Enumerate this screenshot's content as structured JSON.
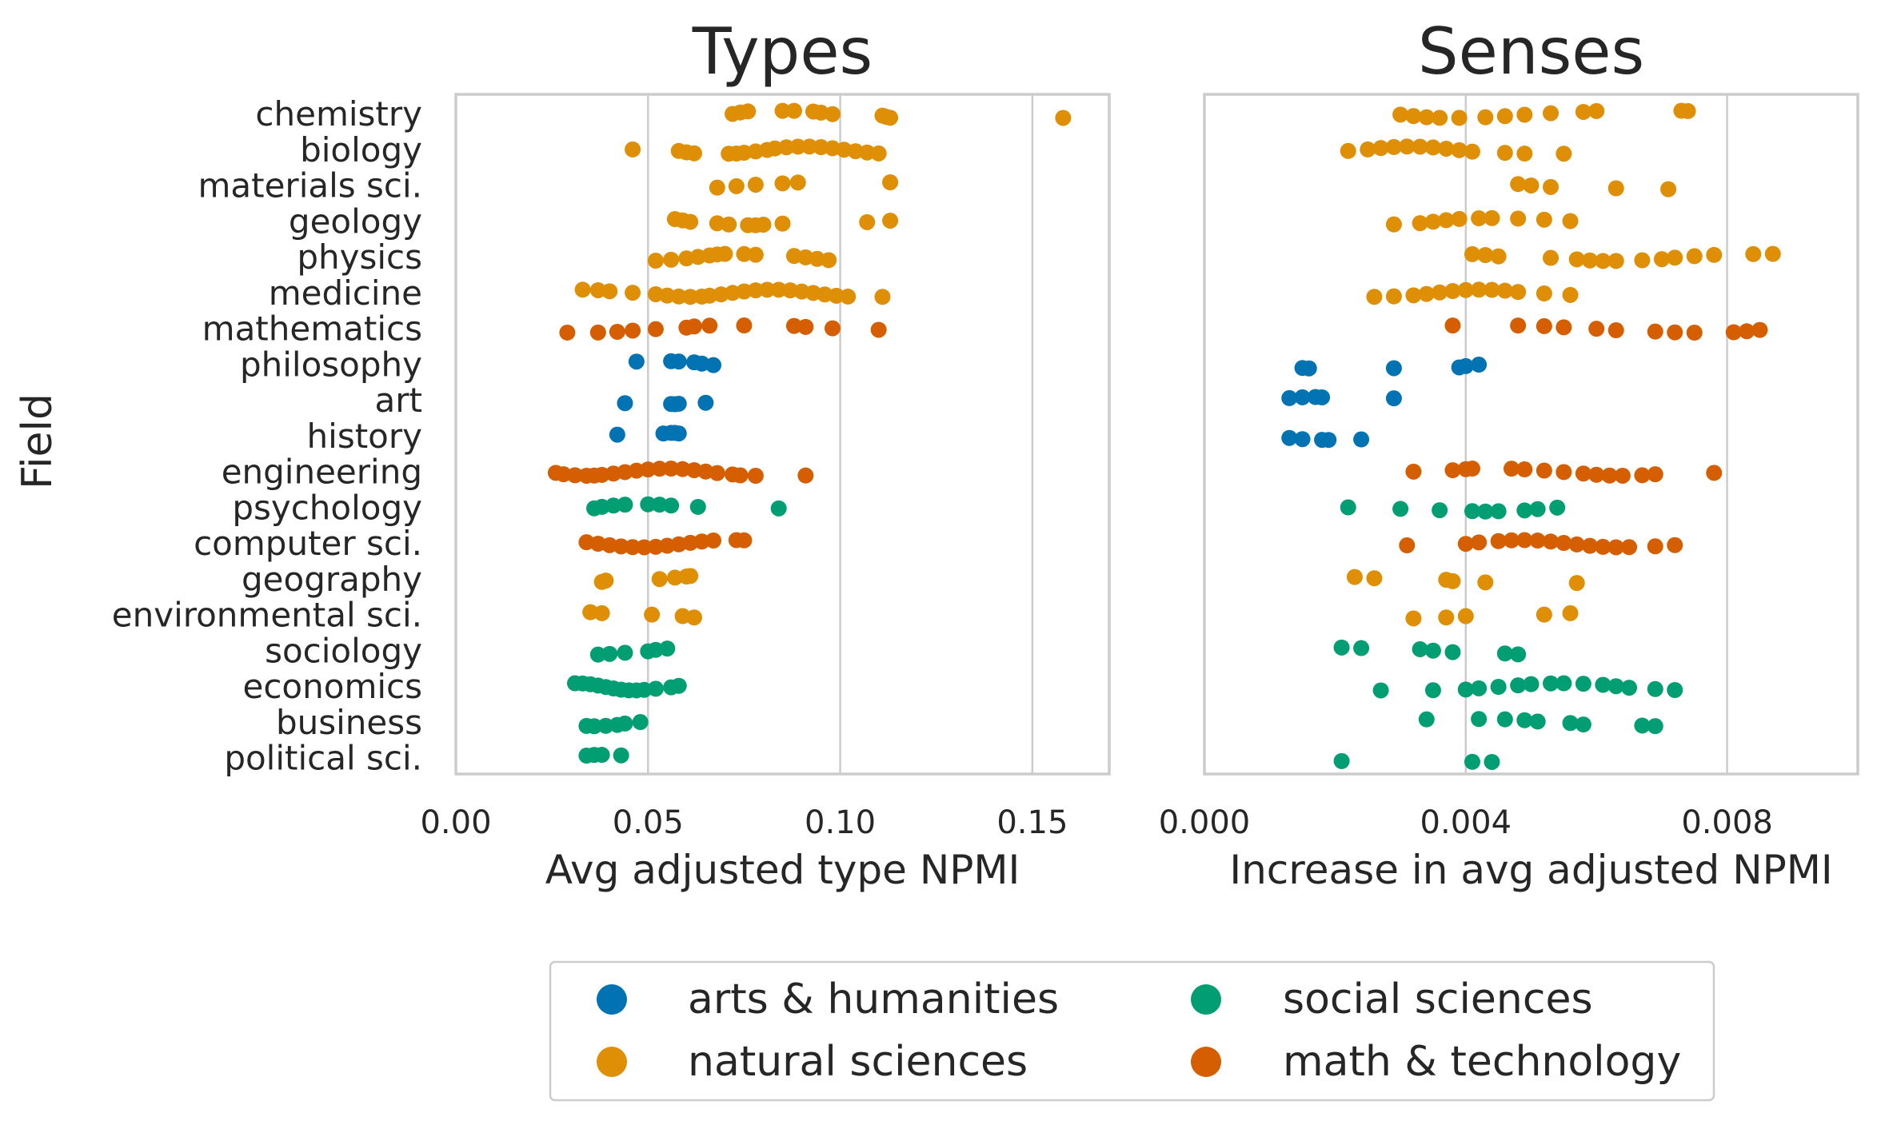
{
  "colors": {
    "arts & humanities": "#0173b2",
    "natural sciences": "#de8f05",
    "social sciences": "#029e73",
    "math & technology": "#d55e00"
  },
  "legend": {
    "items": [
      {
        "label": "arts & humanities",
        "group": "arts & humanities"
      },
      {
        "label": "social sciences",
        "group": "social sciences"
      },
      {
        "label": "natural sciences",
        "group": "natural sciences"
      },
      {
        "label": "math & technology",
        "group": "math & technology"
      }
    ]
  },
  "ylabel": "Field",
  "chart_data": [
    {
      "type": "scatter",
      "title": "Types",
      "xlabel": "Avg adjusted type NPMI",
      "xlim": [
        0.0,
        0.17
      ],
      "xticks": [
        0.0,
        0.05,
        0.1,
        0.15
      ],
      "xtick_labels": [
        "0.00",
        "0.05",
        "0.10",
        "0.15"
      ],
      "grid": true,
      "categories": [
        "chemistry",
        "biology",
        "materials sci.",
        "geology",
        "physics",
        "medicine",
        "mathematics",
        "philosophy",
        "art",
        "history",
        "engineering",
        "psychology",
        "computer sci.",
        "geography",
        "environmental sci.",
        "sociology",
        "economics",
        "business",
        "political sci."
      ],
      "groups": [
        "natural sciences",
        "natural sciences",
        "natural sciences",
        "natural sciences",
        "natural sciences",
        "natural sciences",
        "math & technology",
        "arts & humanities",
        "arts & humanities",
        "arts & humanities",
        "math & technology",
        "social sciences",
        "math & technology",
        "natural sciences",
        "natural sciences",
        "social sciences",
        "social sciences",
        "social sciences",
        "social sciences"
      ],
      "values": [
        [
          0.072,
          0.074,
          0.076,
          0.085,
          0.088,
          0.093,
          0.095,
          0.098,
          0.111,
          0.112,
          0.113,
          0.158
        ],
        [
          0.046,
          0.058,
          0.06,
          0.062,
          0.071,
          0.073,
          0.075,
          0.078,
          0.081,
          0.083,
          0.086,
          0.089,
          0.092,
          0.095,
          0.098,
          0.101,
          0.104,
          0.107,
          0.11
        ],
        [
          0.068,
          0.073,
          0.078,
          0.085,
          0.089,
          0.113
        ],
        [
          0.057,
          0.059,
          0.061,
          0.068,
          0.071,
          0.076,
          0.078,
          0.08,
          0.085,
          0.107,
          0.113
        ],
        [
          0.052,
          0.056,
          0.06,
          0.063,
          0.066,
          0.068,
          0.07,
          0.075,
          0.078,
          0.088,
          0.091,
          0.094,
          0.097
        ],
        [
          0.033,
          0.037,
          0.04,
          0.046,
          0.052,
          0.055,
          0.058,
          0.061,
          0.064,
          0.066,
          0.069,
          0.072,
          0.075,
          0.078,
          0.081,
          0.084,
          0.087,
          0.09,
          0.093,
          0.096,
          0.099,
          0.102,
          0.111
        ],
        [
          0.029,
          0.037,
          0.042,
          0.046,
          0.052,
          0.06,
          0.062,
          0.066,
          0.075,
          0.088,
          0.091,
          0.098,
          0.11
        ],
        [
          0.047,
          0.056,
          0.058,
          0.062,
          0.064,
          0.067
        ],
        [
          0.044,
          0.056,
          0.057,
          0.058,
          0.065
        ],
        [
          0.042,
          0.054,
          0.056,
          0.057,
          0.058
        ],
        [
          0.026,
          0.028,
          0.031,
          0.034,
          0.036,
          0.038,
          0.041,
          0.044,
          0.047,
          0.05,
          0.053,
          0.056,
          0.059,
          0.062,
          0.065,
          0.068,
          0.072,
          0.074,
          0.078,
          0.091
        ],
        [
          0.036,
          0.038,
          0.041,
          0.044,
          0.05,
          0.053,
          0.056,
          0.063,
          0.084
        ],
        [
          0.034,
          0.037,
          0.04,
          0.043,
          0.046,
          0.049,
          0.052,
          0.055,
          0.058,
          0.061,
          0.064,
          0.067,
          0.073,
          0.075
        ],
        [
          0.038,
          0.039,
          0.053,
          0.057,
          0.06,
          0.061
        ],
        [
          0.035,
          0.038,
          0.051,
          0.059,
          0.062
        ],
        [
          0.037,
          0.04,
          0.044,
          0.05,
          0.052,
          0.055
        ],
        [
          0.031,
          0.033,
          0.035,
          0.037,
          0.039,
          0.041,
          0.043,
          0.045,
          0.047,
          0.049,
          0.052,
          0.056,
          0.058
        ],
        [
          0.034,
          0.036,
          0.039,
          0.042,
          0.044,
          0.048
        ],
        [
          0.034,
          0.036,
          0.038,
          0.043
        ]
      ]
    },
    {
      "type": "scatter",
      "title": "Senses",
      "xlabel": "Increase in avg adjusted NPMI",
      "xlim": [
        0.0,
        0.01
      ],
      "xticks": [
        0.0,
        0.004,
        0.008
      ],
      "xtick_labels": [
        "0.000",
        "0.004",
        "0.008"
      ],
      "grid": true,
      "categories": [
        "chemistry",
        "biology",
        "materials sci.",
        "geology",
        "physics",
        "medicine",
        "mathematics",
        "philosophy",
        "art",
        "history",
        "engineering",
        "psychology",
        "computer sci.",
        "geography",
        "environmental sci.",
        "sociology",
        "economics",
        "business",
        "political sci."
      ],
      "groups": [
        "natural sciences",
        "natural sciences",
        "natural sciences",
        "natural sciences",
        "natural sciences",
        "natural sciences",
        "math & technology",
        "arts & humanities",
        "arts & humanities",
        "arts & humanities",
        "math & technology",
        "social sciences",
        "math & technology",
        "natural sciences",
        "natural sciences",
        "social sciences",
        "social sciences",
        "social sciences",
        "social sciences"
      ],
      "values": [
        [
          0.003,
          0.0032,
          0.0034,
          0.0036,
          0.0039,
          0.0043,
          0.0046,
          0.0049,
          0.0053,
          0.0058,
          0.006,
          0.0073,
          0.0074
        ],
        [
          0.0022,
          0.0025,
          0.0027,
          0.0029,
          0.0031,
          0.0033,
          0.0035,
          0.0037,
          0.0039,
          0.0041,
          0.0046,
          0.0049,
          0.0055
        ],
        [
          0.0048,
          0.005,
          0.0053,
          0.0063,
          0.0071
        ],
        [
          0.0029,
          0.0033,
          0.0035,
          0.0037,
          0.0039,
          0.0042,
          0.0044,
          0.0048,
          0.0052,
          0.0056
        ],
        [
          0.0041,
          0.0043,
          0.0045,
          0.0053,
          0.0057,
          0.0059,
          0.0061,
          0.0063,
          0.0067,
          0.007,
          0.0072,
          0.0075,
          0.0078,
          0.0084,
          0.0087
        ],
        [
          0.0026,
          0.0029,
          0.0032,
          0.0034,
          0.0036,
          0.0038,
          0.004,
          0.0042,
          0.0044,
          0.0046,
          0.0048,
          0.0052,
          0.0056
        ],
        [
          0.0038,
          0.0048,
          0.0052,
          0.0055,
          0.006,
          0.0063,
          0.0069,
          0.0072,
          0.0075,
          0.0081,
          0.0083,
          0.0085
        ],
        [
          0.0015,
          0.0016,
          0.0029,
          0.0039,
          0.004,
          0.0042
        ],
        [
          0.0013,
          0.0015,
          0.0017,
          0.0018,
          0.0029
        ],
        [
          0.0013,
          0.0015,
          0.0018,
          0.0019,
          0.0024
        ],
        [
          0.0032,
          0.0038,
          0.004,
          0.0041,
          0.0047,
          0.0049,
          0.0052,
          0.0055,
          0.0058,
          0.006,
          0.0062,
          0.0064,
          0.0067,
          0.0069,
          0.0078
        ],
        [
          0.0022,
          0.003,
          0.0036,
          0.0041,
          0.0043,
          0.0045,
          0.0049,
          0.0051,
          0.0054
        ],
        [
          0.0031,
          0.004,
          0.0042,
          0.0045,
          0.0047,
          0.0049,
          0.0051,
          0.0053,
          0.0055,
          0.0057,
          0.0059,
          0.0061,
          0.0063,
          0.0065,
          0.0069,
          0.0072
        ],
        [
          0.0023,
          0.0026,
          0.0037,
          0.0038,
          0.0043,
          0.0057
        ],
        [
          0.0032,
          0.0037,
          0.004,
          0.0052,
          0.0056
        ],
        [
          0.0021,
          0.0024,
          0.0033,
          0.0035,
          0.0038,
          0.0046,
          0.0048
        ],
        [
          0.0027,
          0.0035,
          0.004,
          0.0042,
          0.0045,
          0.0048,
          0.005,
          0.0053,
          0.0055,
          0.0058,
          0.0061,
          0.0063,
          0.0065,
          0.0069,
          0.0072
        ],
        [
          0.0034,
          0.0042,
          0.0046,
          0.0049,
          0.0051,
          0.0056,
          0.0058,
          0.0067,
          0.0069
        ],
        [
          0.0021,
          0.0041,
          0.0044
        ]
      ]
    }
  ]
}
